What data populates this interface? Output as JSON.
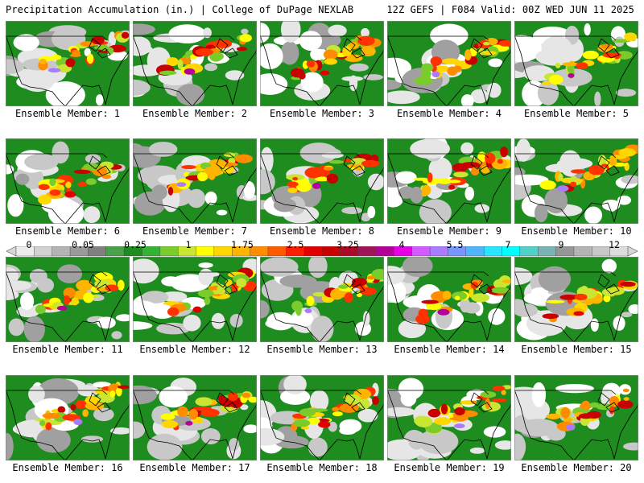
{
  "header": {
    "left": "Precipitation Accumulation (in.) | College of DuPage NEXLAB",
    "right": "12Z GEFS | F084 Valid: 00Z WED JUN 11 2025"
  },
  "panels": [
    {
      "label": "Ensemble Member: 1"
    },
    {
      "label": "Ensemble Member: 2"
    },
    {
      "label": "Ensemble Member: 3"
    },
    {
      "label": "Ensemble Member: 4"
    },
    {
      "label": "Ensemble Member: 5"
    },
    {
      "label": "Ensemble Member: 6"
    },
    {
      "label": "Ensemble Member: 7"
    },
    {
      "label": "Ensemble Member: 8"
    },
    {
      "label": "Ensemble Member: 9"
    },
    {
      "label": "Ensemble Member: 10"
    },
    {
      "label": "Ensemble Member: 11"
    },
    {
      "label": "Ensemble Member: 12"
    },
    {
      "label": "Ensemble Member: 13"
    },
    {
      "label": "Ensemble Member: 14"
    },
    {
      "label": "Ensemble Member: 15"
    },
    {
      "label": "Ensemble Member: 16"
    },
    {
      "label": "Ensemble Member: 17"
    },
    {
      "label": "Ensemble Member: 18"
    },
    {
      "label": "Ensemble Member: 19"
    },
    {
      "label": "Ensemble Member: 20"
    }
  ],
  "colorbar": {
    "tick_labels": [
      "0",
      "0.05",
      "0.25",
      "1",
      "1.75",
      "2.5",
      "3.25",
      "4",
      "5.5",
      "7",
      "9",
      "12"
    ],
    "colors": [
      "#ececec",
      "#d2d2d2",
      "#b4b4b4",
      "#9a9a9a",
      "#808080",
      "#4aa14a",
      "#1e8c1e",
      "#32b432",
      "#7acc2c",
      "#c8e632",
      "#ffff00",
      "#ffd700",
      "#ffb400",
      "#ff8c00",
      "#ff5a00",
      "#ff1e00",
      "#e10000",
      "#c80000",
      "#aa0a28",
      "#a0145a",
      "#b40096",
      "#e600e6",
      "#d25aff",
      "#aa7aff",
      "#7896ff",
      "#50b4ff",
      "#28e6ff",
      "#00ffff",
      "#50d2c8",
      "#78b4b4",
      "#969696",
      "#b4b4b4",
      "#c8c8c8",
      "#dcdcdc"
    ]
  }
}
